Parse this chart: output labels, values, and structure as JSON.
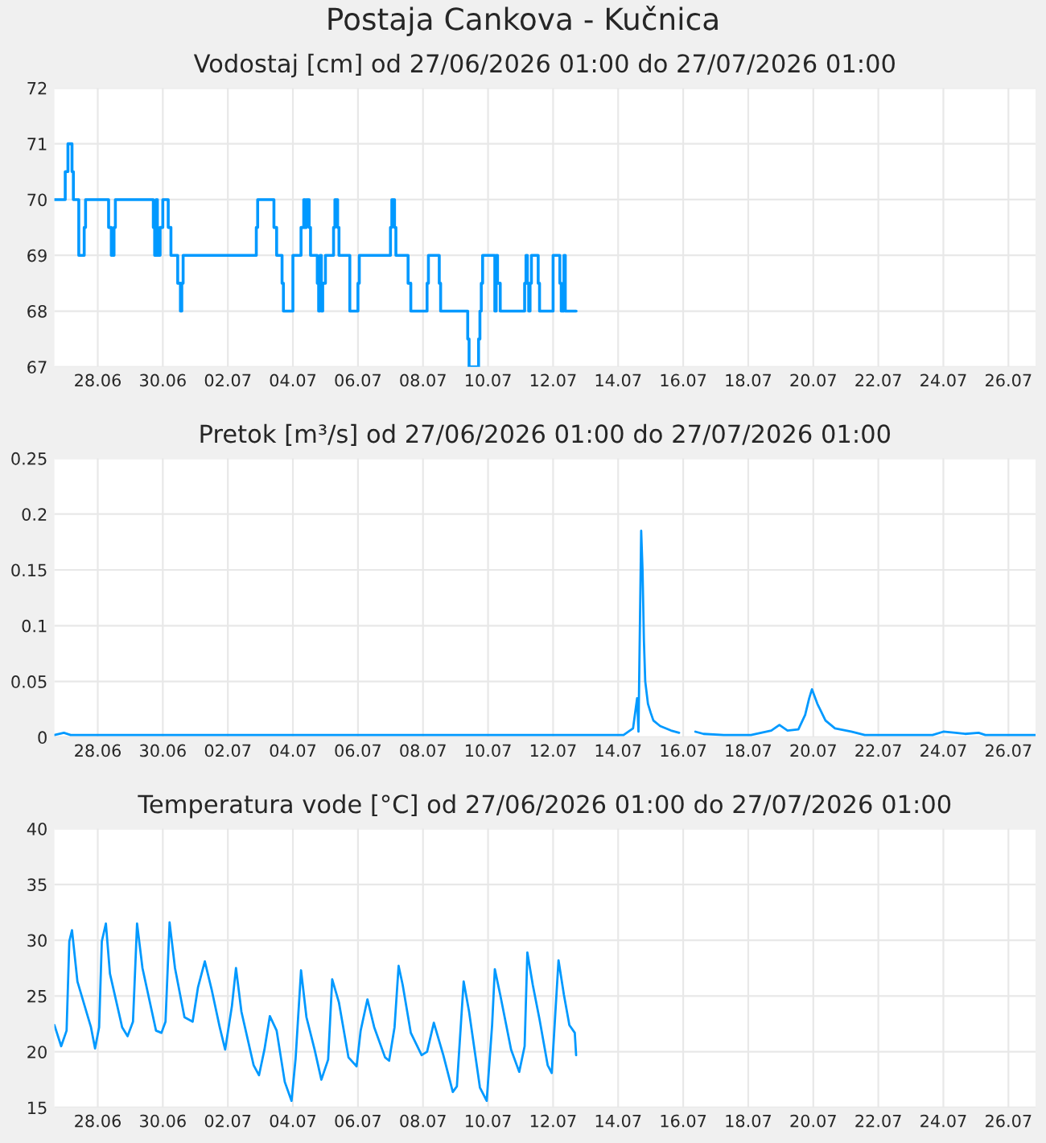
{
  "chart_data": [
    {
      "type": "step",
      "title": "Postaja Cankova - Kučnica",
      "subtitle": "Vodostaj [cm] od 27/06/2026 01:00 do 27/07/2026 01:00",
      "xlim": [
        "2026-06-26T16:00",
        "2026-07-26T20:00"
      ],
      "xticks": [
        {
          "value": "2026-06-28",
          "label": "28.06"
        },
        {
          "value": "2026-06-30",
          "label": "30.06"
        },
        {
          "value": "2026-07-02",
          "label": "02.07"
        },
        {
          "value": "2026-07-04",
          "label": "04.07"
        },
        {
          "value": "2026-07-06",
          "label": "06.07"
        },
        {
          "value": "2026-07-08",
          "label": "08.07"
        },
        {
          "value": "2026-07-10",
          "label": "10.07"
        },
        {
          "value": "2026-07-12",
          "label": "12.07"
        },
        {
          "value": "2026-07-14",
          "label": "14.07"
        },
        {
          "value": "2026-07-16",
          "label": "16.07"
        },
        {
          "value": "2026-07-18",
          "label": "18.07"
        },
        {
          "value": "2026-07-20",
          "label": "20.07"
        },
        {
          "value": "2026-07-22",
          "label": "22.07"
        },
        {
          "value": "2026-07-24",
          "label": "24.07"
        },
        {
          "value": "2026-07-26",
          "label": "26.07"
        }
      ],
      "ylim": [
        67,
        72
      ],
      "yticks": [
        67,
        68,
        69,
        70,
        71,
        72
      ],
      "grid": true,
      "series": [
        {
          "color": "#0099ff",
          "x": [
            "2026-06-26T16:00",
            "2026-06-27T00:00",
            "2026-06-27T02:00",
            "2026-06-27T05:00",
            "2026-06-27T06:00",
            "2026-06-27T10:00",
            "2026-06-27T14:00",
            "2026-06-27T15:00",
            "2026-06-28T08:00",
            "2026-06-28T10:00",
            "2026-06-28T12:00",
            "2026-06-28T13:00",
            "2026-06-29T17:00",
            "2026-06-29T18:00",
            "2026-06-29T19:00",
            "2026-06-29T20:00",
            "2026-06-29T22:00",
            "2026-06-30T00:00",
            "2026-06-30T04:00",
            "2026-06-30T06:00",
            "2026-06-30T11:00",
            "2026-06-30T13:00",
            "2026-06-30T14:00",
            "2026-06-30T15:00",
            "2026-07-02T21:00",
            "2026-07-02T22:00",
            "2026-07-03T10:00",
            "2026-07-03T12:00",
            "2026-07-03T16:00",
            "2026-07-03T17:00",
            "2026-07-04T00:00",
            "2026-07-04T06:00",
            "2026-07-04T08:00",
            "2026-07-04T09:00",
            "2026-07-04T10:00",
            "2026-07-04T12:00",
            "2026-07-04T13:00",
            "2026-07-04T18:00",
            "2026-07-04T19:00",
            "2026-07-04T20:00",
            "2026-07-04T21:00",
            "2026-07-04T22:00",
            "2026-07-05T00:00",
            "2026-07-05T06:00",
            "2026-07-05T07:00",
            "2026-07-05T09:00",
            "2026-07-05T10:00",
            "2026-07-05T18:00",
            "2026-07-06T00:00",
            "2026-07-06T01:00",
            "2026-07-07T00:00",
            "2026-07-07T01:00",
            "2026-07-07T03:00",
            "2026-07-07T04:00",
            "2026-07-07T13:00",
            "2026-07-07T15:00",
            "2026-07-08T03:00",
            "2026-07-08T04:00",
            "2026-07-08T12:00",
            "2026-07-08T13:00",
            "2026-07-09T09:00",
            "2026-07-09T10:00",
            "2026-07-09T17:00",
            "2026-07-09T18:00",
            "2026-07-09T19:00",
            "2026-07-09T20:00",
            "2026-07-10T05:00",
            "2026-07-10T06:00",
            "2026-07-10T07:00",
            "2026-07-10T09:00",
            "2026-07-11T03:00",
            "2026-07-11T04:00",
            "2026-07-11T05:00",
            "2026-07-11T06:00",
            "2026-07-11T07:00",
            "2026-07-11T08:00",
            "2026-07-11T13:00",
            "2026-07-11T14:00",
            "2026-07-12T00:00",
            "2026-07-12T05:00",
            "2026-07-12T06:00",
            "2026-07-12T08:00",
            "2026-07-12T09:00",
            "2026-07-12T17:00"
          ],
          "values": [
            70,
            70.5,
            71,
            70.5,
            70,
            69,
            69.5,
            70,
            69.5,
            69,
            69.5,
            70,
            69.5,
            69,
            70,
            69,
            69.5,
            70,
            69.5,
            69,
            68.5,
            68,
            68.5,
            69,
            69.5,
            70,
            69.5,
            69,
            68.5,
            68,
            69,
            69.5,
            70,
            69.5,
            70,
            69.5,
            69,
            68.5,
            68,
            69,
            68,
            68.5,
            69,
            69.5,
            70,
            69.5,
            69,
            68,
            68.5,
            69,
            69.5,
            70,
            69.5,
            69,
            68.5,
            68,
            68.5,
            69,
            68.5,
            68,
            67.5,
            67,
            67.5,
            68,
            68.5,
            69,
            68,
            69,
            68.5,
            68,
            68.5,
            69,
            68.5,
            68,
            68.5,
            69,
            68.5,
            68,
            69,
            68.5,
            68,
            69,
            68,
            68
          ]
        }
      ]
    },
    {
      "type": "line",
      "title": "Pretok [m³/s] od 27/06/2026 01:00 do 27/07/2026 01:00",
      "xlim": [
        "2026-06-26T16:00",
        "2026-07-26T20:00"
      ],
      "xticks": [
        {
          "value": "2026-06-28",
          "label": "28.06"
        },
        {
          "value": "2026-06-30",
          "label": "30.06"
        },
        {
          "value": "2026-07-02",
          "label": "02.07"
        },
        {
          "value": "2026-07-04",
          "label": "04.07"
        },
        {
          "value": "2026-07-06",
          "label": "06.07"
        },
        {
          "value": "2026-07-08",
          "label": "08.07"
        },
        {
          "value": "2026-07-10",
          "label": "10.07"
        },
        {
          "value": "2026-07-12",
          "label": "12.07"
        },
        {
          "value": "2026-07-14",
          "label": "14.07"
        },
        {
          "value": "2026-07-16",
          "label": "16.07"
        },
        {
          "value": "2026-07-18",
          "label": "18.07"
        },
        {
          "value": "2026-07-20",
          "label": "20.07"
        },
        {
          "value": "2026-07-22",
          "label": "22.07"
        },
        {
          "value": "2026-07-24",
          "label": "24.07"
        },
        {
          "value": "2026-07-26",
          "label": "26.07"
        }
      ],
      "ylim": [
        0,
        0.25
      ],
      "yticks": [
        0,
        0.05,
        0.1,
        0.15,
        0.2,
        0.25
      ],
      "grid": true,
      "series": [
        {
          "color": "#0099ff",
          "x": [
            "2026-06-26T16:00",
            "2026-06-26T23:00",
            "2026-06-27T04:00",
            "2026-07-14T04:00",
            "2026-07-14T11:00",
            "2026-07-14T14:00",
            "2026-07-14T15:00",
            "2026-07-14T17:00",
            "2026-07-14T18:00",
            "2026-07-14T19:00",
            "2026-07-14T20:00",
            "2026-07-14T22:00",
            "2026-07-15T00:00",
            "2026-07-15T02:00",
            "2026-07-15T07:00",
            "2026-07-15T15:00",
            "2026-07-15T21:00",
            "2026-07-16T03:00",
            "2026-07-16T09:00",
            "2026-07-16T15:00",
            "2026-07-17T06:00",
            "2026-07-18T02:00",
            "2026-07-18T17:00",
            "2026-07-18T23:00",
            "2026-07-19T05:00",
            "2026-07-19T13:00",
            "2026-07-19T18:00",
            "2026-07-19T21:00",
            "2026-07-19T23:00",
            "2026-07-20T03:00",
            "2026-07-20T09:00",
            "2026-07-20T16:00",
            "2026-07-21T04:00",
            "2026-07-21T14:00",
            "2026-07-23T16:00",
            "2026-07-24T00:00",
            "2026-07-24T09:00",
            "2026-07-24T16:00",
            "2026-07-25T02:00",
            "2026-07-25T07:00",
            "2026-07-26T20:00"
          ],
          "values": [
            0.002,
            0.004,
            0.002,
            0.002,
            0.008,
            0.035,
            0.005,
            0.185,
            0.15,
            0.087,
            0.05,
            0.03,
            0.022,
            0.015,
            0.01,
            0.006,
            0.004,
            null,
            0.005,
            0.003,
            0.002,
            0.002,
            0.006,
            0.011,
            0.006,
            0.007,
            0.02,
            0.035,
            0.043,
            0.03,
            0.015,
            0.008,
            0.005,
            0.002,
            0.002,
            0.005,
            0.004,
            0.003,
            0.004,
            0.002,
            0.002
          ]
        }
      ]
    },
    {
      "type": "line",
      "title": "Temperatura vode [°C] od 27/06/2026 01:00 do 27/07/2026 01:00",
      "xlim": [
        "2026-06-26T16:00",
        "2026-07-26T20:00"
      ],
      "xticks": [
        {
          "value": "2026-06-28",
          "label": "28.06"
        },
        {
          "value": "2026-06-30",
          "label": "30.06"
        },
        {
          "value": "2026-07-02",
          "label": "02.07"
        },
        {
          "value": "2026-07-04",
          "label": "04.07"
        },
        {
          "value": "2026-07-06",
          "label": "06.07"
        },
        {
          "value": "2026-07-08",
          "label": "08.07"
        },
        {
          "value": "2026-07-10",
          "label": "10.07"
        },
        {
          "value": "2026-07-12",
          "label": "12.07"
        },
        {
          "value": "2026-07-14",
          "label": "14.07"
        },
        {
          "value": "2026-07-16",
          "label": "16.07"
        },
        {
          "value": "2026-07-18",
          "label": "18.07"
        },
        {
          "value": "2026-07-20",
          "label": "20.07"
        },
        {
          "value": "2026-07-22",
          "label": "22.07"
        },
        {
          "value": "2026-07-24",
          "label": "24.07"
        },
        {
          "value": "2026-07-26",
          "label": "26.07"
        }
      ],
      "ylim": [
        15,
        40
      ],
      "yticks": [
        15,
        20,
        25,
        30,
        35,
        40
      ],
      "grid": true,
      "series": [
        {
          "color": "#0099ff",
          "x": [
            "2026-06-26T16:00",
            "2026-06-26T21:00",
            "2026-06-27T01:00",
            "2026-06-27T03:00",
            "2026-06-27T05:00",
            "2026-06-27T09:00",
            "2026-06-27T19:00",
            "2026-06-27T22:00",
            "2026-06-28T01:00",
            "2026-06-28T03:00",
            "2026-06-28T06:00",
            "2026-06-28T09:00",
            "2026-06-28T18:00",
            "2026-06-28T22:00",
            "2026-06-29T02:00",
            "2026-06-29T05:00",
            "2026-06-29T09:00",
            "2026-06-29T19:00",
            "2026-06-29T23:00",
            "2026-06-30T02:00",
            "2026-06-30T05:00",
            "2026-06-30T09:00",
            "2026-06-30T16:00",
            "2026-06-30T22:00",
            "2026-07-01T02:00",
            "2026-07-01T07:00",
            "2026-07-01T12:00",
            "2026-07-01T18:00",
            "2026-07-01T22:00",
            "2026-07-02T03:00",
            "2026-07-02T06:00",
            "2026-07-02T10:00",
            "2026-07-02T19:00",
            "2026-07-02T23:00",
            "2026-07-03T03:00",
            "2026-07-03T07:00",
            "2026-07-03T12:00",
            "2026-07-03T18:00",
            "2026-07-03T23:00",
            "2026-07-04T02:00",
            "2026-07-04T06:00",
            "2026-07-04T10:00",
            "2026-07-04T16:00",
            "2026-07-04T21:00",
            "2026-07-05T02:00",
            "2026-07-05T05:00",
            "2026-07-05T10:00",
            "2026-07-05T17:00",
            "2026-07-05T23:00",
            "2026-07-06T02:00",
            "2026-07-06T07:00",
            "2026-07-06T12:00",
            "2026-07-06T20:00",
            "2026-07-06T23:00",
            "2026-07-07T03:00",
            "2026-07-07T06:00",
            "2026-07-07T09:00",
            "2026-07-07T15:00",
            "2026-07-07T23:00",
            "2026-07-08T03:00",
            "2026-07-08T08:00",
            "2026-07-08T15:00",
            "2026-07-08T22:00",
            "2026-07-09T01:00",
            "2026-07-09T06:00",
            "2026-07-09T10:00",
            "2026-07-09T18:00",
            "2026-07-09T23:00",
            "2026-07-10T03:00",
            "2026-07-10T05:00",
            "2026-07-10T09:00",
            "2026-07-10T17:00",
            "2026-07-10T23:00",
            "2026-07-11T03:00",
            "2026-07-11T05:00",
            "2026-07-11T09:00",
            "2026-07-11T14:00",
            "2026-07-11T20:00",
            "2026-07-11T23:00",
            "2026-07-12T04:00",
            "2026-07-12T08:00",
            "2026-07-12T12:00",
            "2026-07-12T16:00",
            "2026-07-12T17:00"
          ],
          "values": [
            22.4,
            20.5,
            21.9,
            29.9,
            30.9,
            26.3,
            22.2,
            20.3,
            22.2,
            29.9,
            31.5,
            27.0,
            22.2,
            21.4,
            22.7,
            31.5,
            27.5,
            21.9,
            21.7,
            22.7,
            31.6,
            27.5,
            23.1,
            22.7,
            25.8,
            28.1,
            25.6,
            22.2,
            20.2,
            24.1,
            27.5,
            23.6,
            18.8,
            17.9,
            20.2,
            23.2,
            21.9,
            17.3,
            15.6,
            19.4,
            27.3,
            23.1,
            20.2,
            17.5,
            19.3,
            26.5,
            24.4,
            19.5,
            18.7,
            21.9,
            24.7,
            22.2,
            19.5,
            19.2,
            22.2,
            27.7,
            26.0,
            21.7,
            19.7,
            20.0,
            22.6,
            19.7,
            16.4,
            16.9,
            26.3,
            23.6,
            16.8,
            15.6,
            22.4,
            27.4,
            25.1,
            20.2,
            18.2,
            20.5,
            28.9,
            26.0,
            22.9,
            18.8,
            18.1,
            28.2,
            25.1,
            22.4,
            21.7,
            19.7
          ]
        }
      ]
    }
  ]
}
